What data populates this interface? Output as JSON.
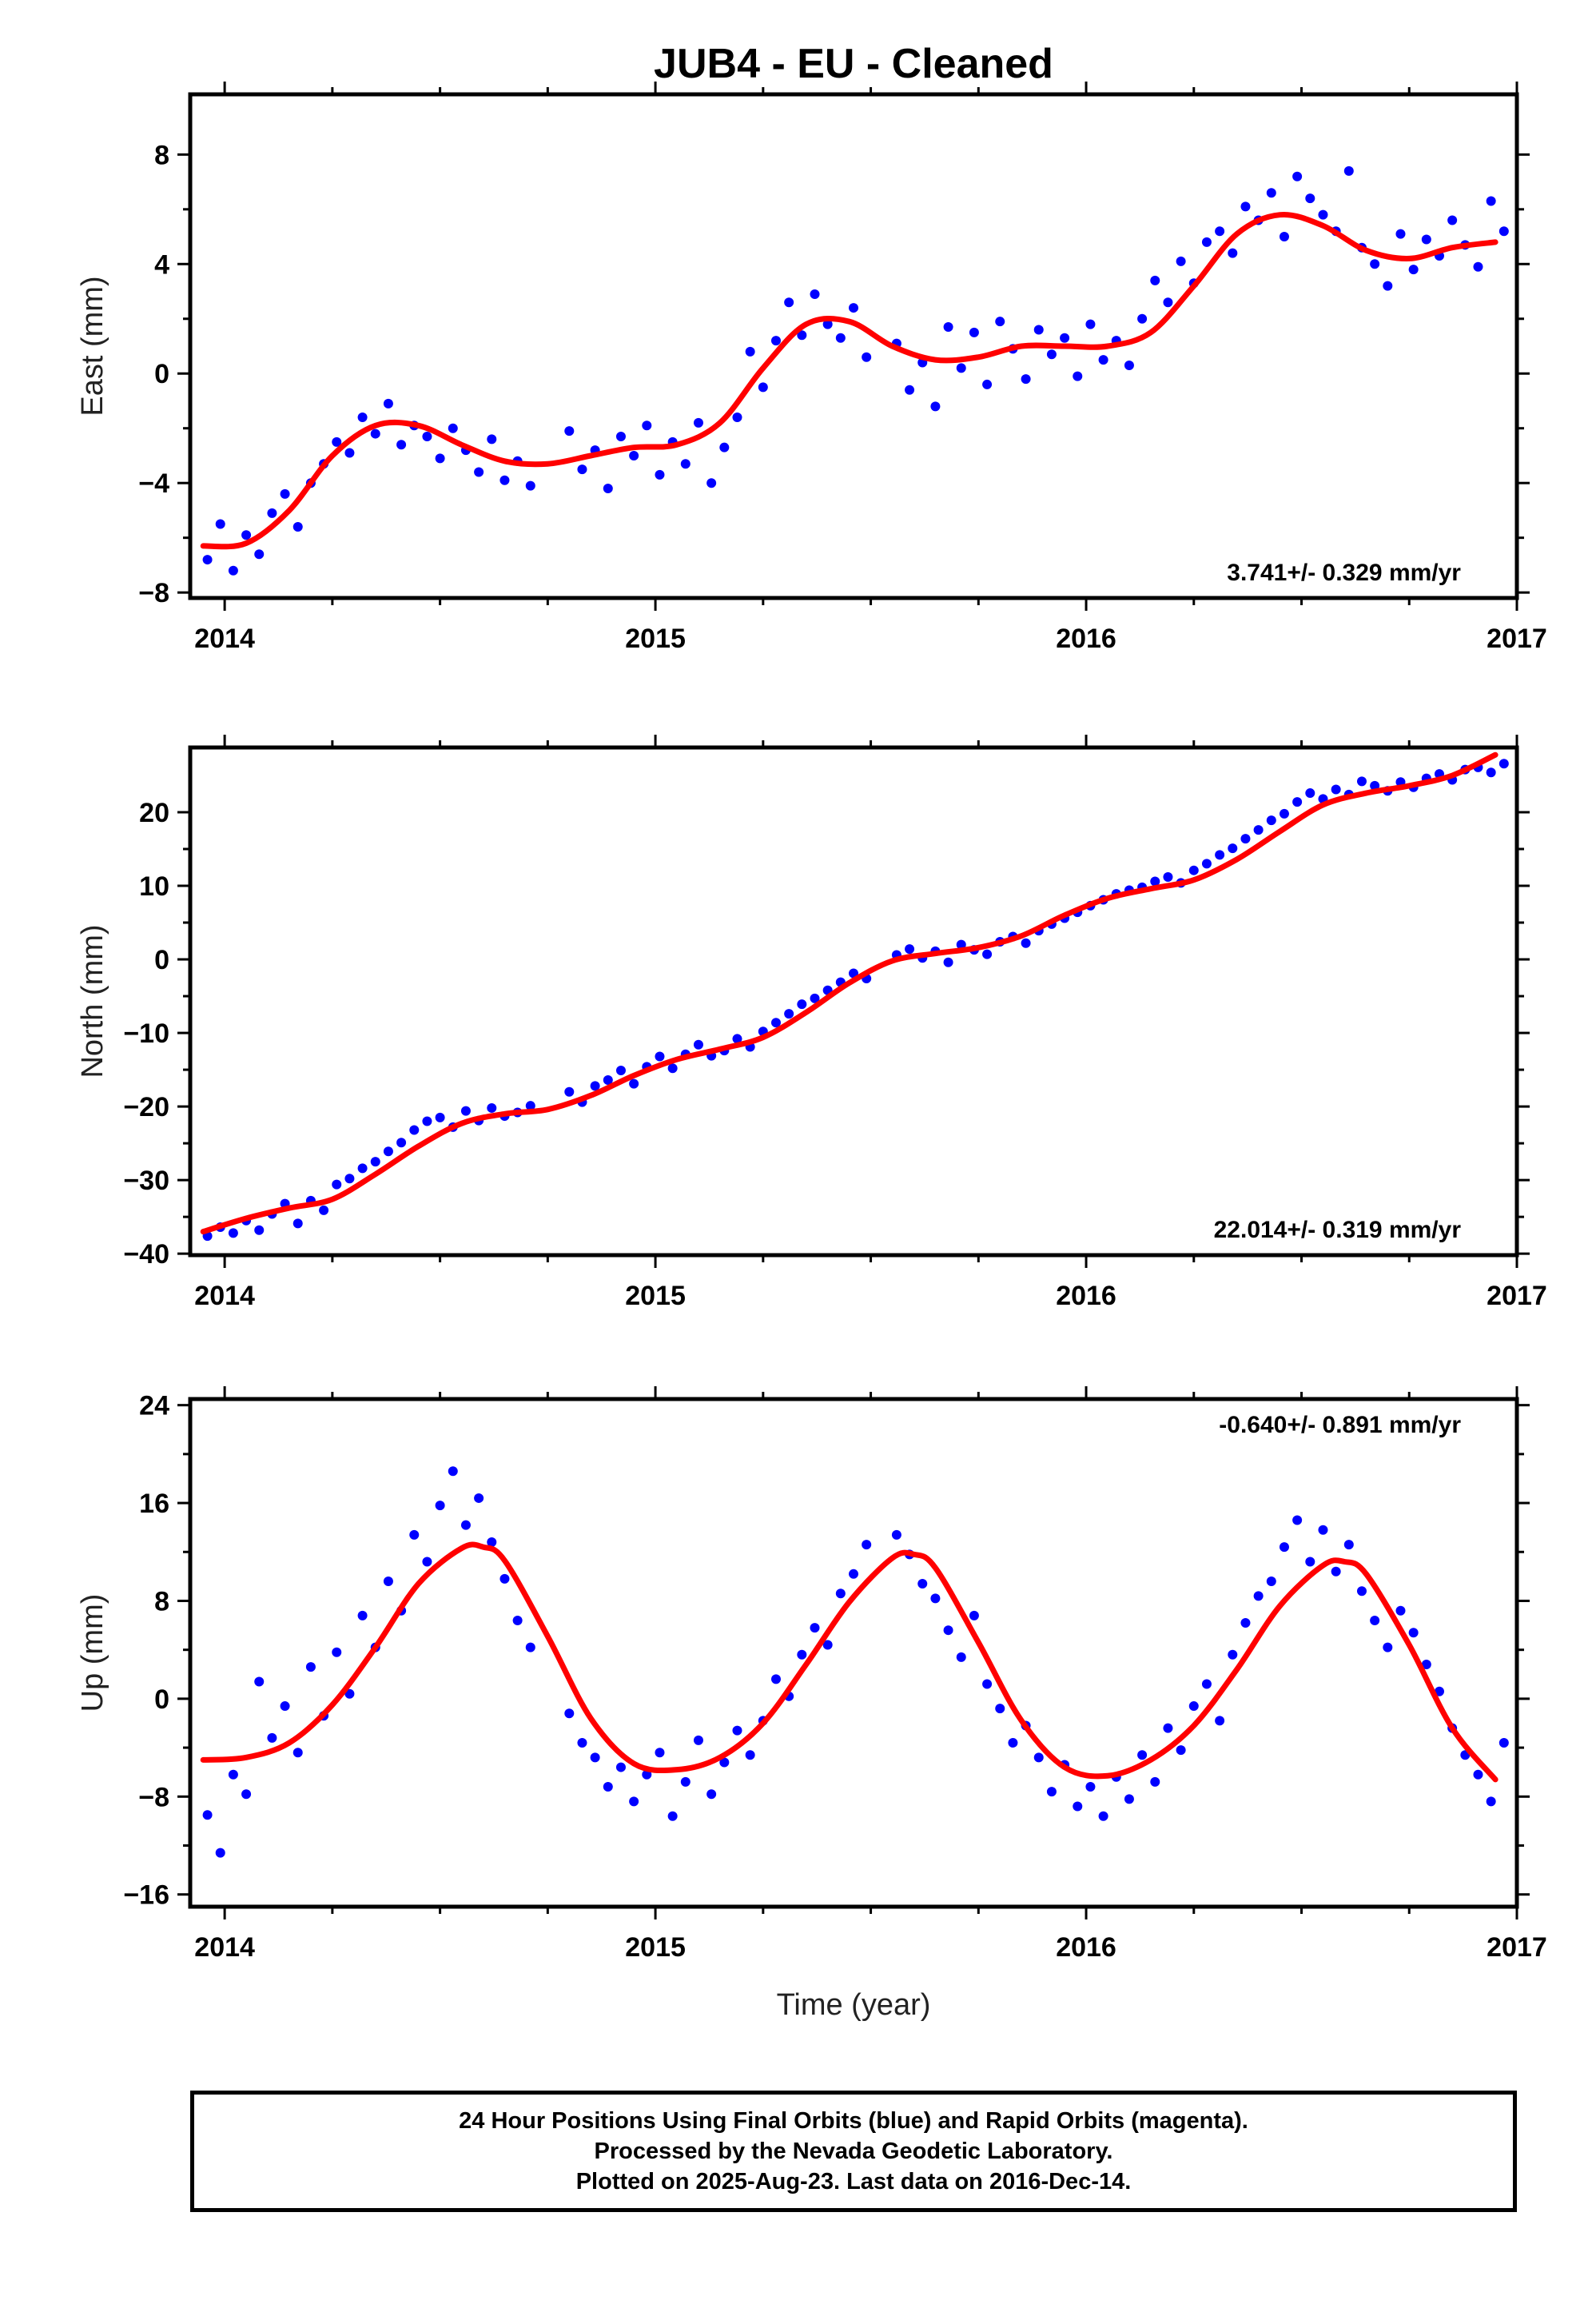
{
  "title": "JUB4  - EU - Cleaned",
  "xlabel": "Time (year)",
  "footer": {
    "line1": "24 Hour Positions Using Final Orbits (blue) and Rapid Orbits (magenta).",
    "line2": "Processed by the Nevada Geodetic Laboratory.",
    "line3": "Plotted on 2025-Aug-23. Last data on 2016-Dec-14."
  },
  "colors": {
    "points": "#0000ff",
    "fit": "#ff0000",
    "axes": "#000000"
  },
  "chart_data": [
    {
      "type": "scatter",
      "ylabel": "East (mm)",
      "rate_label": "3.741+/- 0.329 mm/yr",
      "xlim": [
        2013.92,
        2017.0
      ],
      "ylim": [
        -8.2,
        10.2
      ],
      "xticks": [
        2014,
        2015,
        2016,
        2017
      ],
      "yticks": [
        -8,
        -4,
        0,
        4,
        8
      ],
      "grid": false,
      "fit_curve": {
        "x": [
          2013.95,
          2014.05,
          2014.15,
          2014.25,
          2014.35,
          2014.45,
          2014.55,
          2014.65,
          2014.75,
          2014.85,
          2014.95,
          2015.05,
          2015.15,
          2015.25,
          2015.35,
          2015.45,
          2015.55,
          2015.65,
          2015.75,
          2015.85,
          2015.95,
          2016.05,
          2016.15,
          2016.25,
          2016.35,
          2016.45,
          2016.55,
          2016.65,
          2016.75,
          2016.85,
          2016.95
        ],
        "y": [
          -6.3,
          -6.2,
          -5.0,
          -3.0,
          -1.9,
          -1.9,
          -2.6,
          -3.2,
          -3.3,
          -3.0,
          -2.7,
          -2.6,
          -1.8,
          0.2,
          1.8,
          1.9,
          1.0,
          0.5,
          0.6,
          1.0,
          1.0,
          1.0,
          1.5,
          3.2,
          5.1,
          5.8,
          5.4,
          4.5,
          4.2,
          4.6,
          4.8
        ]
      },
      "points": {
        "x": [
          2013.96,
          2013.99,
          2014.02,
          2014.05,
          2014.08,
          2014.11,
          2014.14,
          2014.17,
          2014.2,
          2014.23,
          2014.26,
          2014.29,
          2014.32,
          2014.35,
          2014.38,
          2014.41,
          2014.44,
          2014.47,
          2014.5,
          2014.53,
          2014.56,
          2014.59,
          2014.62,
          2014.65,
          2014.68,
          2014.71,
          2014.8,
          2014.83,
          2014.86,
          2014.89,
          2014.92,
          2014.95,
          2014.98,
          2015.01,
          2015.04,
          2015.07,
          2015.1,
          2015.13,
          2015.16,
          2015.19,
          2015.22,
          2015.25,
          2015.28,
          2015.31,
          2015.34,
          2015.37,
          2015.4,
          2015.43,
          2015.46,
          2015.49,
          2015.56,
          2015.59,
          2015.62,
          2015.65,
          2015.68,
          2015.71,
          2015.74,
          2015.77,
          2015.8,
          2015.83,
          2015.86,
          2015.89,
          2015.92,
          2015.95,
          2015.98,
          2016.01,
          2016.04,
          2016.07,
          2016.1,
          2016.13,
          2016.16,
          2016.19,
          2016.22,
          2016.25,
          2016.28,
          2016.31,
          2016.34,
          2016.37,
          2016.4,
          2016.43,
          2016.46,
          2016.49,
          2016.52,
          2016.55,
          2016.58,
          2016.61,
          2016.64,
          2016.67,
          2016.7,
          2016.73,
          2016.76,
          2016.79,
          2016.82,
          2016.85,
          2016.88,
          2016.91,
          2016.94,
          2016.97
        ],
        "y": [
          -6.8,
          -5.5,
          -7.2,
          -5.9,
          -6.6,
          -5.1,
          -4.4,
          -5.6,
          -4.0,
          -3.3,
          -2.5,
          -2.9,
          -1.6,
          -2.2,
          -1.1,
          -2.6,
          -1.9,
          -2.3,
          -3.1,
          -2.0,
          -2.8,
          -3.6,
          -2.4,
          -3.9,
          -3.2,
          -4.1,
          -2.1,
          -3.5,
          -2.8,
          -4.2,
          -2.3,
          -3.0,
          -1.9,
          -3.7,
          -2.5,
          -3.3,
          -1.8,
          -4.0,
          -2.7,
          -1.6,
          0.8,
          -0.5,
          1.2,
          2.6,
          1.4,
          2.9,
          1.8,
          1.3,
          2.4,
          0.6,
          1.1,
          -0.6,
          0.4,
          -1.2,
          1.7,
          0.2,
          1.5,
          -0.4,
          1.9,
          0.9,
          -0.2,
          1.6,
          0.7,
          1.3,
          -0.1,
          1.8,
          0.5,
          1.2,
          0.3,
          2.0,
          3.4,
          2.6,
          4.1,
          3.3,
          4.8,
          5.2,
          4.4,
          6.1,
          5.6,
          6.6,
          5.0,
          7.2,
          6.4,
          5.8,
          5.2,
          7.4,
          4.6,
          4.0,
          3.2,
          5.1,
          3.8,
          4.9,
          4.3,
          5.6,
          4.7,
          3.9,
          6.3,
          5.2
        ]
      }
    },
    {
      "type": "scatter",
      "ylabel": "North (mm)",
      "rate_label": "22.014+/- 0.319 mm/yr",
      "xlim": [
        2013.92,
        2017.0
      ],
      "ylim": [
        -40.2,
        28.8
      ],
      "xticks": [
        2014,
        2015,
        2016,
        2017
      ],
      "yticks": [
        -40,
        -30,
        -20,
        -10,
        0,
        10,
        20
      ],
      "grid": false,
      "fit_curve": {
        "x": [
          2013.95,
          2014.05,
          2014.15,
          2014.25,
          2014.35,
          2014.45,
          2014.55,
          2014.65,
          2014.75,
          2014.85,
          2014.95,
          2015.05,
          2015.15,
          2015.25,
          2015.35,
          2015.45,
          2015.55,
          2015.65,
          2015.75,
          2015.85,
          2015.95,
          2016.05,
          2016.15,
          2016.25,
          2016.35,
          2016.45,
          2016.55,
          2016.65,
          2016.75,
          2016.85,
          2016.95
        ],
        "y": [
          -37.0,
          -35.2,
          -33.8,
          -32.6,
          -29.2,
          -25.4,
          -22.3,
          -21.0,
          -20.4,
          -18.5,
          -15.8,
          -13.6,
          -12.2,
          -10.6,
          -7.2,
          -3.2,
          -0.2,
          0.8,
          1.6,
          3.2,
          6.0,
          8.3,
          9.6,
          10.8,
          13.6,
          17.4,
          21.0,
          22.6,
          23.6,
          25.0,
          27.8
        ]
      },
      "points": {
        "x": [
          2013.96,
          2013.99,
          2014.02,
          2014.05,
          2014.08,
          2014.11,
          2014.14,
          2014.17,
          2014.2,
          2014.23,
          2014.26,
          2014.29,
          2014.32,
          2014.35,
          2014.38,
          2014.41,
          2014.44,
          2014.47,
          2014.5,
          2014.53,
          2014.56,
          2014.59,
          2014.62,
          2014.65,
          2014.68,
          2014.71,
          2014.8,
          2014.83,
          2014.86,
          2014.89,
          2014.92,
          2014.95,
          2014.98,
          2015.01,
          2015.04,
          2015.07,
          2015.1,
          2015.13,
          2015.16,
          2015.19,
          2015.22,
          2015.25,
          2015.28,
          2015.31,
          2015.34,
          2015.37,
          2015.4,
          2015.43,
          2015.46,
          2015.49,
          2015.56,
          2015.59,
          2015.62,
          2015.65,
          2015.68,
          2015.71,
          2015.74,
          2015.77,
          2015.8,
          2015.83,
          2015.86,
          2015.89,
          2015.92,
          2015.95,
          2015.98,
          2016.01,
          2016.04,
          2016.07,
          2016.1,
          2016.13,
          2016.16,
          2016.19,
          2016.22,
          2016.25,
          2016.28,
          2016.31,
          2016.34,
          2016.37,
          2016.4,
          2016.43,
          2016.46,
          2016.49,
          2016.52,
          2016.55,
          2016.58,
          2016.61,
          2016.64,
          2016.67,
          2016.7,
          2016.73,
          2016.76,
          2016.79,
          2016.82,
          2016.85,
          2016.88,
          2016.91,
          2016.94,
          2016.97
        ],
        "y": [
          -37.6,
          -36.4,
          -37.2,
          -35.5,
          -36.8,
          -34.6,
          -33.2,
          -35.9,
          -32.8,
          -34.1,
          -30.6,
          -29.8,
          -28.4,
          -27.5,
          -26.1,
          -24.9,
          -23.2,
          -22.0,
          -21.5,
          -22.8,
          -20.6,
          -21.9,
          -20.2,
          -21.3,
          -20.8,
          -19.9,
          -18.0,
          -19.4,
          -17.2,
          -16.4,
          -15.1,
          -16.9,
          -14.6,
          -13.2,
          -14.8,
          -12.9,
          -11.6,
          -13.1,
          -12.4,
          -10.8,
          -11.9,
          -9.8,
          -8.6,
          -7.4,
          -6.1,
          -5.3,
          -4.2,
          -3.1,
          -1.9,
          -2.6,
          0.6,
          1.4,
          0.2,
          1.1,
          -0.4,
          2.0,
          1.3,
          0.7,
          2.4,
          3.1,
          2.2,
          3.9,
          4.8,
          5.6,
          6.4,
          7.3,
          8.1,
          8.9,
          9.4,
          9.8,
          10.6,
          11.2,
          10.4,
          12.1,
          13.0,
          14.2,
          15.1,
          16.4,
          17.6,
          18.9,
          19.8,
          21.4,
          22.6,
          21.8,
          23.1,
          22.4,
          24.2,
          23.6,
          22.9,
          24.1,
          23.4,
          24.6,
          25.2,
          24.4,
          25.8,
          26.1,
          25.4,
          26.6
        ]
      }
    },
    {
      "type": "scatter",
      "ylabel": "Up (mm)",
      "rate_label": "-0.640+/- 0.891 mm/yr",
      "xlim": [
        2013.92,
        2017.0
      ],
      "ylim": [
        -17,
        24.5
      ],
      "xticks": [
        2014,
        2015,
        2016,
        2017
      ],
      "yticks": [
        -16,
        -8,
        0,
        8,
        16,
        24
      ],
      "grid": false,
      "fit_curve": {
        "x": [
          2013.95,
          2014.05,
          2014.15,
          2014.25,
          2014.35,
          2014.45,
          2014.55,
          2014.6,
          2014.65,
          2014.75,
          2014.85,
          2014.95,
          2015.05,
          2015.15,
          2015.25,
          2015.35,
          2015.45,
          2015.55,
          2015.6,
          2015.65,
          2015.75,
          2015.85,
          2015.95,
          2016.05,
          2016.15,
          2016.25,
          2016.35,
          2016.45,
          2016.55,
          2016.6,
          2016.65,
          2016.75,
          2016.85,
          2016.95
        ],
        "y": [
          -5.0,
          -4.8,
          -3.6,
          -0.5,
          4.2,
          9.4,
          12.3,
          12.4,
          11.3,
          5.1,
          -1.6,
          -5.3,
          -5.8,
          -4.8,
          -2.0,
          2.8,
          7.9,
          11.5,
          11.8,
          10.7,
          4.6,
          -1.8,
          -5.6,
          -6.3,
          -5.0,
          -2.2,
          2.4,
          7.6,
          10.9,
          11.2,
          10.2,
          4.4,
          -2.4,
          -6.6
        ]
      },
      "points": {
        "x": [
          2013.96,
          2013.99,
          2014.02,
          2014.05,
          2014.08,
          2014.11,
          2014.14,
          2014.17,
          2014.2,
          2014.23,
          2014.26,
          2014.29,
          2014.32,
          2014.35,
          2014.38,
          2014.41,
          2014.44,
          2014.47,
          2014.5,
          2014.53,
          2014.56,
          2014.59,
          2014.62,
          2014.65,
          2014.68,
          2014.71,
          2014.8,
          2014.83,
          2014.86,
          2014.89,
          2014.92,
          2014.95,
          2014.98,
          2015.01,
          2015.04,
          2015.07,
          2015.1,
          2015.13,
          2015.16,
          2015.19,
          2015.22,
          2015.25,
          2015.28,
          2015.31,
          2015.34,
          2015.37,
          2015.4,
          2015.43,
          2015.46,
          2015.49,
          2015.56,
          2015.59,
          2015.62,
          2015.65,
          2015.68,
          2015.71,
          2015.74,
          2015.77,
          2015.8,
          2015.83,
          2015.86,
          2015.89,
          2015.92,
          2015.95,
          2015.98,
          2016.01,
          2016.04,
          2016.07,
          2016.1,
          2016.13,
          2016.16,
          2016.19,
          2016.22,
          2016.25,
          2016.28,
          2016.31,
          2016.34,
          2016.37,
          2016.4,
          2016.43,
          2016.46,
          2016.49,
          2016.52,
          2016.55,
          2016.58,
          2016.61,
          2016.64,
          2016.67,
          2016.7,
          2016.73,
          2016.76,
          2016.79,
          2016.82,
          2016.85,
          2016.88,
          2016.91,
          2016.94,
          2016.97
        ],
        "y": [
          -9.5,
          -12.6,
          -6.2,
          -7.8,
          1.4,
          -3.2,
          -0.6,
          -4.4,
          2.6,
          -1.4,
          3.8,
          0.4,
          6.8,
          4.2,
          9.6,
          7.2,
          13.4,
          11.2,
          15.8,
          18.6,
          14.2,
          16.4,
          12.8,
          9.8,
          6.4,
          4.2,
          -1.2,
          -3.6,
          -4.8,
          -7.2,
          -5.6,
          -8.4,
          -6.2,
          -4.4,
          -9.6,
          -6.8,
          -3.4,
          -7.8,
          -5.2,
          -2.6,
          -4.6,
          -1.8,
          1.6,
          0.2,
          3.6,
          5.8,
          4.4,
          8.6,
          10.2,
          12.6,
          13.4,
          11.8,
          9.4,
          8.2,
          5.6,
          3.4,
          6.8,
          1.2,
          -0.8,
          -3.6,
          -2.2,
          -4.8,
          -7.6,
          -5.4,
          -8.8,
          -7.2,
          -9.6,
          -6.4,
          -8.2,
          -4.6,
          -6.8,
          -2.4,
          -4.2,
          -0.6,
          1.2,
          -1.8,
          3.6,
          6.2,
          8.4,
          9.6,
          12.4,
          14.6,
          11.2,
          13.8,
          10.4,
          12.6,
          8.8,
          6.4,
          4.2,
          7.2,
          5.4,
          2.8,
          0.6,
          -2.4,
          -4.6,
          -6.2,
          -8.4,
          -3.6
        ]
      }
    }
  ]
}
